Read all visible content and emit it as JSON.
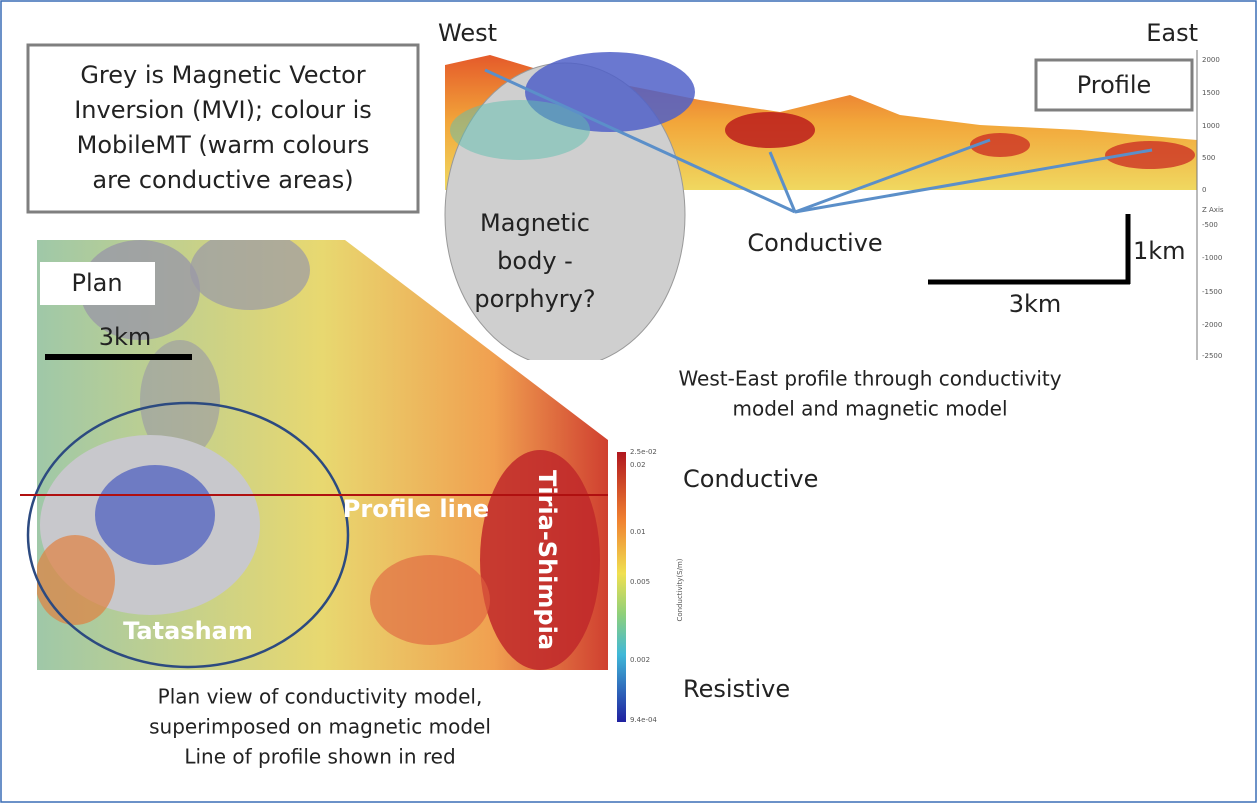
{
  "note": {
    "lines": [
      "Grey is Magnetic Vector",
      "Inversion (MVI); colour is",
      "MobileMT (warm colours",
      "are conductive areas)"
    ]
  },
  "profile": {
    "west": "West",
    "east": "East",
    "label": "Profile",
    "magnetic_body": [
      "Magnetic",
      "body -",
      "porphyry?"
    ],
    "conductive": "Conductive",
    "vertical_scale": "1km",
    "horizontal_scale": "3km",
    "axis_ticks": [
      "2000",
      "1500",
      "1000",
      "500",
      "0",
      "Z Axis",
      "-500",
      "-1000",
      "-1500",
      "-2000",
      "-2500"
    ],
    "caption": [
      "West-East profile through conductivity",
      "model and magnetic model"
    ]
  },
  "plan": {
    "label": "Plan",
    "scale": "3km",
    "profile_line": "Profile line",
    "tiria": "Tiria-Shimpia",
    "tatasham": "Tatasham",
    "caption": [
      "Plan view of conductivity model,",
      "superimposed on magnetic model",
      "Line of profile shown in red"
    ]
  },
  "colorbar": {
    "ticks": [
      "2.5e-02",
      "0.02",
      "0.01",
      "0.005",
      "0.002",
      "9.4e-04"
    ],
    "title": "Conductivity(S/m)",
    "top_label": "Conductive",
    "bottom_label": "Resistive"
  }
}
